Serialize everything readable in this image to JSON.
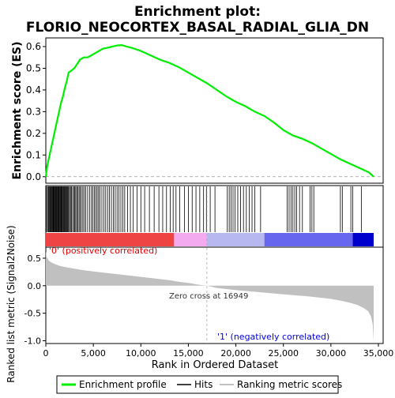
{
  "title_line1": "Enrichment plot:",
  "title_line2": "FLORIO_NEOCORTEX_BASAL_RADIAL_GLIA_DN",
  "colors": {
    "es_line": "#00ee00",
    "hits": "#000000",
    "metric_fill": "#c0c0c0",
    "pos_color": "#dd0000",
    "neg_color": "#0000dd",
    "label_pos": "#dd0000",
    "label_neg": "#0000dd"
  },
  "chart_data": [
    {
      "type": "line",
      "panel": "enrichment",
      "ylabel": "Enrichment score (ES)",
      "xlim": [
        0,
        35000
      ],
      "ylim": [
        -0.03,
        0.64
      ],
      "yticks": [
        "0.0",
        "0.1",
        "0.2",
        "0.3",
        "0.4",
        "0.5",
        "0.6"
      ],
      "grid": false,
      "series": [
        {
          "name": "Enrichment profile",
          "x": [
            0,
            150,
            350,
            600,
            800,
            1000,
            1200,
            1400,
            1600,
            1800,
            2000,
            2200,
            2400,
            2700,
            3000,
            3300,
            3600,
            4000,
            4400,
            4800,
            5200,
            5600,
            6000,
            6500,
            7000,
            7500,
            8000,
            8500,
            9000,
            10000,
            11000,
            12000,
            13000,
            14000,
            15000,
            16000,
            17000,
            18000,
            19000,
            20000,
            21000,
            22000,
            23000,
            24000,
            25000,
            26000,
            27000,
            28000,
            29000,
            30000,
            31000,
            32000,
            33000,
            34000,
            34500
          ],
          "y": [
            0.0,
            0.05,
            0.09,
            0.14,
            0.18,
            0.22,
            0.26,
            0.3,
            0.34,
            0.37,
            0.41,
            0.44,
            0.48,
            0.49,
            0.5,
            0.52,
            0.54,
            0.55,
            0.55,
            0.56,
            0.57,
            0.58,
            0.59,
            0.595,
            0.6,
            0.605,
            0.607,
            0.6,
            0.595,
            0.58,
            0.56,
            0.54,
            0.525,
            0.505,
            0.48,
            0.455,
            0.43,
            0.4,
            0.37,
            0.345,
            0.325,
            0.3,
            0.28,
            0.25,
            0.215,
            0.19,
            0.175,
            0.155,
            0.13,
            0.105,
            0.08,
            0.06,
            0.04,
            0.02,
            0.0
          ]
        }
      ]
    },
    {
      "type": "scatter",
      "panel": "hits",
      "legend": "Hits",
      "xlim": [
        0,
        35000
      ],
      "hit_positions": [
        60,
        180,
        260,
        340,
        420,
        500,
        560,
        620,
        700,
        760,
        820,
        880,
        950,
        1010,
        1080,
        1140,
        1200,
        1270,
        1330,
        1390,
        1450,
        1520,
        1590,
        1650,
        1720,
        1790,
        1860,
        1930,
        2000,
        2080,
        2160,
        2240,
        2320,
        2400,
        2500,
        2600,
        2700,
        2820,
        2950,
        3050,
        3150,
        3260,
        3380,
        3500,
        3620,
        3750,
        3900,
        4050,
        4200,
        4400,
        4600,
        4800,
        4950,
        5100,
        5250,
        5400,
        5550,
        5700,
        5900,
        6100,
        6300,
        6500,
        6700,
        6900,
        7100,
        7300,
        7500,
        7700,
        7900,
        8100,
        8300,
        8600,
        8900,
        9200,
        9600,
        10000,
        10400,
        10900,
        11400,
        11900,
        12300,
        12700,
        13100,
        13400,
        13700,
        14100,
        14600,
        15000,
        15400,
        15800,
        16200,
        16600,
        16900,
        17300,
        17800,
        19100,
        19300,
        19500,
        19700,
        19900,
        20200,
        20500,
        20800,
        21100,
        21400,
        21700,
        22000,
        22600,
        25400,
        25600,
        25800,
        26000,
        26200,
        26400,
        26700,
        27000,
        27800,
        28000,
        28200,
        31000,
        31200,
        32100,
        32300,
        33200
      ],
      "heatmap_bands": [
        {
          "from": 0,
          "to": 13500,
          "color": "#ee4444"
        },
        {
          "from": 13500,
          "to": 16949,
          "color": "#f4aaee"
        },
        {
          "from": 16949,
          "to": 23000,
          "color": "#b8b8f0"
        },
        {
          "from": 23000,
          "to": 32300,
          "color": "#6666ee"
        },
        {
          "from": 32300,
          "to": 34500,
          "color": "#0000cc"
        }
      ]
    },
    {
      "type": "area",
      "panel": "metric",
      "ylabel": "Ranked list metric (Signal2Noise)",
      "xlabel": "Rank in Ordered Dataset",
      "xlim": [
        0,
        35000
      ],
      "ylim": [
        -1.05,
        0.7
      ],
      "yticks": [
        "-1.0",
        "-0.5",
        "0.0",
        "0.5"
      ],
      "xticks": [
        "0",
        "5,000",
        "10,000",
        "15,000",
        "20,000",
        "25,000",
        "30,000",
        "35,000"
      ],
      "series": [
        {
          "name": "Ranking metric scores",
          "x": [
            0,
            100,
            300,
            600,
            1000,
            1500,
            2000,
            3000,
            4000,
            5000,
            6000,
            7000,
            8000,
            9000,
            10000,
            11000,
            12000,
            13000,
            14000,
            15000,
            16000,
            16949,
            18000,
            20000,
            22000,
            24000,
            26000,
            28000,
            30000,
            31000,
            32000,
            32800,
            33400,
            33900,
            34200,
            34400,
            34500
          ],
          "y": [
            0.62,
            0.52,
            0.46,
            0.42,
            0.39,
            0.36,
            0.34,
            0.31,
            0.28,
            0.26,
            0.24,
            0.22,
            0.2,
            0.18,
            0.16,
            0.14,
            0.12,
            0.1,
            0.07,
            0.05,
            0.02,
            0.0,
            -0.04,
            -0.08,
            -0.11,
            -0.14,
            -0.17,
            -0.2,
            -0.24,
            -0.27,
            -0.31,
            -0.35,
            -0.4,
            -0.46,
            -0.55,
            -0.7,
            -1.0
          ]
        }
      ]
    }
  ],
  "labels": {
    "pos_label": "'0' (positively correlated)",
    "neg_label": "'1' (negatively correlated)",
    "zero_cross": "Zero cross at 16949"
  },
  "legend": {
    "items": [
      {
        "label": "Enrichment profile"
      },
      {
        "label": "Hits"
      },
      {
        "label": "Ranking metric scores"
      }
    ]
  }
}
